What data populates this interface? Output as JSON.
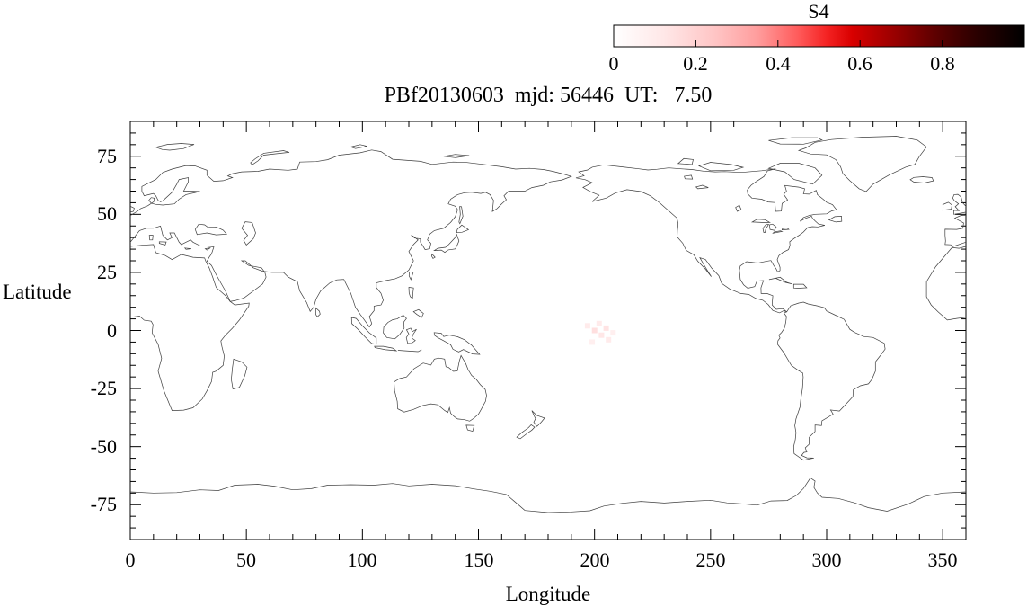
{
  "title": "PBf20130603  mjd: 56446  UT:   7.50",
  "colorbar": {
    "label": "S4",
    "tick_labels": [
      "0",
      "0.2",
      "0.4",
      "0.6",
      "0.8"
    ],
    "range": [
      0,
      1
    ],
    "palette": [
      "#ffffff",
      "#ff0000",
      "#000000"
    ]
  },
  "x_axis": {
    "label": "Longitude",
    "tick_labels": [
      "0",
      "50",
      "100",
      "150",
      "200",
      "250",
      "300",
      "350"
    ],
    "range": [
      0,
      360
    ]
  },
  "y_axis": {
    "label": "Latitude",
    "tick_labels": [
      "75",
      "50",
      "25",
      "0",
      "-25",
      "-50",
      "-75"
    ],
    "range": [
      -90,
      90
    ]
  },
  "chart_data": {
    "type": "heatmap",
    "title": "PBf20130603  mjd: 56446  UT:   7.50",
    "xlabel": "Longitude",
    "ylabel": "Latitude",
    "xlim": [
      0,
      360
    ],
    "ylim": [
      -90,
      90
    ],
    "x_ticks": [
      0,
      50,
      100,
      150,
      200,
      250,
      300,
      350
    ],
    "y_ticks": [
      75,
      50,
      25,
      0,
      -25,
      -50,
      -75
    ],
    "grid": false,
    "colorbar": {
      "label": "S4",
      "min": 0,
      "max": 1,
      "ticks": [
        0,
        0.2,
        0.4,
        0.6,
        0.8
      ],
      "palette": "white-red-black"
    },
    "basemap": "world coastlines, equirectangular projection, 0-360 longitude (Pacific-centered)",
    "points": [
      {
        "lon": 197,
        "lat": 2,
        "s4": 0.05
      },
      {
        "lon": 200,
        "lat": 0,
        "s4": 0.08
      },
      {
        "lon": 203,
        "lat": -2,
        "s4": 0.06
      },
      {
        "lon": 206,
        "lat": -4,
        "s4": 0.05
      },
      {
        "lon": 199,
        "lat": -5,
        "s4": 0.04
      },
      {
        "lon": 202,
        "lat": 3,
        "s4": 0.05
      },
      {
        "lon": 205,
        "lat": 1,
        "s4": 0.07
      },
      {
        "lon": 208,
        "lat": -1,
        "s4": 0.04
      }
    ],
    "note": "only visible data: faint near-zero S4 (pale pink) cluster near the equator around longitude 195-210; remainder of map is empty basemap"
  }
}
